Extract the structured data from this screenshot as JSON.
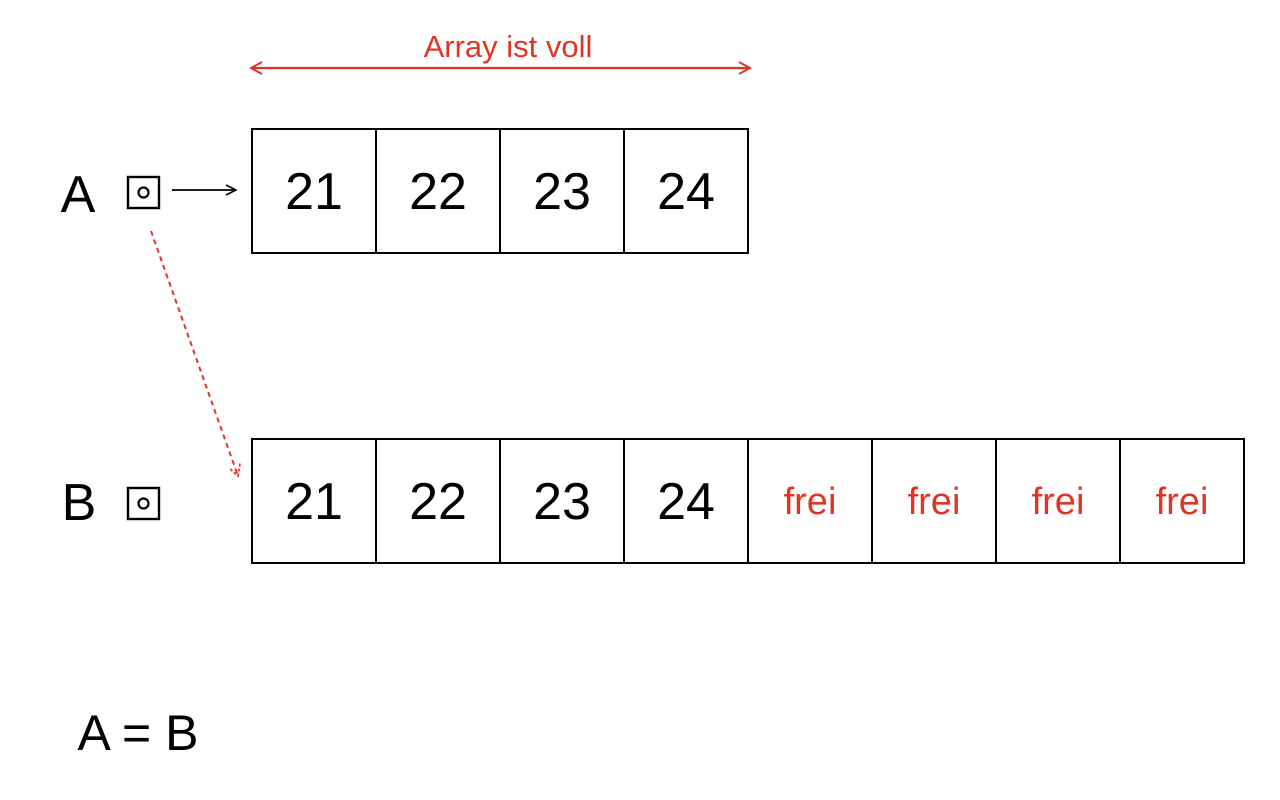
{
  "colors": {
    "accent": "#e03526",
    "ink": "#000000"
  },
  "range_label": "Array ist voll",
  "array_a": {
    "name": "A",
    "cells": [
      {
        "text": "21",
        "free": false
      },
      {
        "text": "22",
        "free": false
      },
      {
        "text": "23",
        "free": false
      },
      {
        "text": "24",
        "free": false
      }
    ]
  },
  "array_b": {
    "name": "B",
    "cells": [
      {
        "text": "21",
        "free": false
      },
      {
        "text": "22",
        "free": false
      },
      {
        "text": "23",
        "free": false
      },
      {
        "text": "24",
        "free": false
      },
      {
        "text": "frei",
        "free": true
      },
      {
        "text": "frei",
        "free": true
      },
      {
        "text": "frei",
        "free": true
      },
      {
        "text": "frei",
        "free": true
      }
    ]
  },
  "equation": "A = B"
}
